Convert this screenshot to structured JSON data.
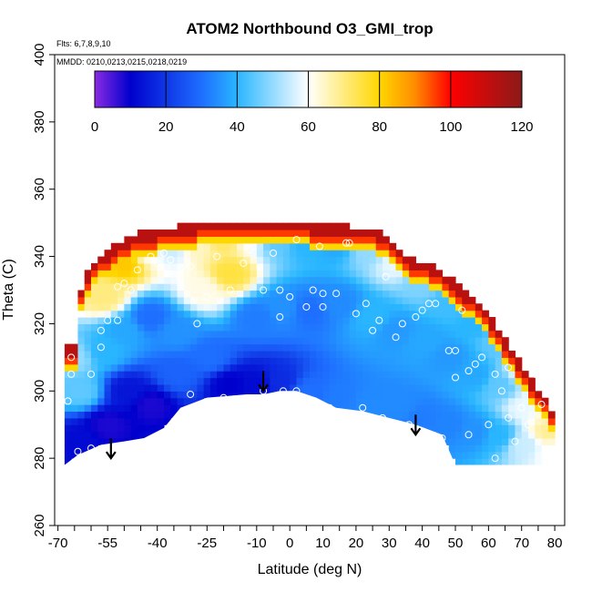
{
  "chart_data": {
    "type": "heatmap",
    "title": "ATOM2 Northbound O3_GMI_trop",
    "flights_label": "Flts: 6,7,8,9,10",
    "dates_label": "MMDD: 0210,0213,0215,0218,0219",
    "xlabel": "Latitude (deg N)",
    "ylabel": "Theta (C)",
    "xlim": [
      -71,
      83
    ],
    "ylim": [
      260,
      400
    ],
    "x_ticks": [
      -70,
      -55,
      -40,
      -25,
      -10,
      0,
      10,
      20,
      30,
      40,
      50,
      60,
      70,
      80
    ],
    "x_tick_labels": [
      "-70",
      "-55",
      "-40",
      "-25",
      "-10",
      "0",
      "10",
      "20",
      "30",
      "40",
      "50",
      "60",
      "70",
      "80"
    ],
    "y_ticks": [
      260,
      280,
      300,
      320,
      340,
      360,
      380,
      400
    ],
    "y_tick_labels": [
      "260",
      "280",
      "300",
      "320",
      "340",
      "360",
      "380",
      "400"
    ],
    "colorbar": {
      "min": 0,
      "max": 120,
      "ticks": [
        0,
        20,
        40,
        60,
        80,
        100,
        120
      ],
      "tick_labels": [
        "0",
        "20",
        "40",
        "60",
        "80",
        "100",
        "120"
      ],
      "colors": [
        "#8a2be2",
        "#0000cd",
        "#1e6eff",
        "#29b6ff",
        "#ffffff",
        "#ffd700",
        "#ff8c00",
        "#ff0000",
        "#8b1a1a"
      ],
      "stops": [
        0,
        10,
        30,
        40,
        60,
        80,
        90,
        100,
        120
      ]
    },
    "upper_boundary": [
      [
        -68,
        312
      ],
      [
        -64,
        313
      ],
      [
        -63,
        330
      ],
      [
        -60,
        337
      ],
      [
        -56,
        340
      ],
      [
        -52,
        343
      ],
      [
        -46,
        346
      ],
      [
        -40,
        347
      ],
      [
        -34,
        348
      ],
      [
        -20,
        350
      ],
      [
        -10,
        350
      ],
      [
        5,
        349
      ],
      [
        18,
        348
      ],
      [
        26,
        347
      ],
      [
        32,
        343
      ],
      [
        36,
        339
      ],
      [
        42,
        337
      ],
      [
        48,
        333
      ],
      [
        54,
        328
      ],
      [
        60,
        322
      ],
      [
        64,
        316
      ],
      [
        68,
        310
      ],
      [
        71,
        305
      ],
      [
        75,
        300
      ],
      [
        78,
        297
      ],
      [
        80,
        291
      ],
      [
        81,
        278
      ]
    ],
    "lower_boundary": [
      [
        -68,
        278
      ],
      [
        -64,
        281
      ],
      [
        -57,
        284
      ],
      [
        -50,
        285
      ],
      [
        -44,
        286
      ],
      [
        -38,
        289
      ],
      [
        -33,
        295
      ],
      [
        -25,
        298
      ],
      [
        -13,
        299
      ],
      [
        -8,
        299
      ],
      [
        -3,
        300
      ],
      [
        2,
        300
      ],
      [
        8,
        298
      ],
      [
        14,
        295
      ],
      [
        22,
        294
      ],
      [
        30,
        292
      ],
      [
        38,
        290
      ],
      [
        46,
        287
      ],
      [
        50,
        278
      ]
    ],
    "grid_points": [
      [
        -65,
        310,
        50
      ],
      [
        -63,
        300,
        45
      ],
      [
        -63,
        285,
        12
      ],
      [
        -56,
        328,
        70
      ],
      [
        -56,
        312,
        40
      ],
      [
        -55,
        290,
        8
      ],
      [
        -50,
        338,
        82
      ],
      [
        -50,
        318,
        38
      ],
      [
        -49,
        300,
        14
      ],
      [
        -43,
        342,
        60
      ],
      [
        -42,
        322,
        30
      ],
      [
        -42,
        296,
        8
      ],
      [
        -36,
        343,
        55
      ],
      [
        -34,
        318,
        35
      ],
      [
        -34,
        305,
        28
      ],
      [
        -28,
        344,
        65
      ],
      [
        -26,
        330,
        62
      ],
      [
        -24,
        310,
        30
      ],
      [
        -20,
        345,
        72
      ],
      [
        -18,
        335,
        75
      ],
      [
        -18,
        302,
        10
      ],
      [
        -12,
        346,
        60
      ],
      [
        -10,
        322,
        32
      ],
      [
        -10,
        302,
        12
      ],
      [
        -4,
        345,
        45
      ],
      [
        -2,
        325,
        35
      ],
      [
        -3,
        303,
        18
      ],
      [
        5,
        344,
        40
      ],
      [
        6,
        324,
        30
      ],
      [
        6,
        300,
        30
      ],
      [
        14,
        344,
        38
      ],
      [
        15,
        326,
        34
      ],
      [
        15,
        298,
        32
      ],
      [
        24,
        342,
        50
      ],
      [
        25,
        322,
        40
      ],
      [
        24,
        296,
        34
      ],
      [
        32,
        338,
        58
      ],
      [
        32,
        318,
        36
      ],
      [
        33,
        296,
        34
      ],
      [
        40,
        332,
        48
      ],
      [
        41,
        315,
        38
      ],
      [
        40,
        292,
        32
      ],
      [
        48,
        326,
        42
      ],
      [
        48,
        310,
        36
      ],
      [
        48,
        290,
        33
      ],
      [
        56,
        320,
        40
      ],
      [
        56,
        305,
        38
      ],
      [
        56,
        288,
        35
      ],
      [
        63,
        315,
        45
      ],
      [
        64,
        302,
        45
      ],
      [
        63,
        287,
        40
      ],
      [
        70,
        305,
        58
      ],
      [
        71,
        295,
        58
      ],
      [
        71,
        284,
        55
      ],
      [
        77,
        296,
        65
      ],
      [
        78,
        288,
        68
      ],
      [
        79,
        282,
        60
      ]
    ],
    "observation_points": [
      [
        -67,
        297
      ],
      [
        -66,
        310
      ],
      [
        -66,
        305
      ],
      [
        -64,
        282
      ],
      [
        -60,
        283
      ],
      [
        -60,
        305
      ],
      [
        -57,
        318
      ],
      [
        -57,
        313
      ],
      [
        -55,
        321
      ],
      [
        -52,
        321
      ],
      [
        -52,
        331
      ],
      [
        -50,
        332
      ],
      [
        -48,
        330
      ],
      [
        -46,
        336
      ],
      [
        -42,
        340
      ],
      [
        -40,
        338
      ],
      [
        -38,
        341
      ],
      [
        -36,
        339
      ],
      [
        -30,
        337
      ],
      [
        -30,
        299
      ],
      [
        -28,
        320
      ],
      [
        -25,
        328
      ],
      [
        -22,
        340
      ],
      [
        -20,
        298
      ],
      [
        -18,
        330
      ],
      [
        -14,
        338
      ],
      [
        -12,
        342
      ],
      [
        -8,
        330
      ],
      [
        -8,
        300
      ],
      [
        -5,
        341
      ],
      [
        -3,
        330
      ],
      [
        -3,
        322
      ],
      [
        -2,
        300
      ],
      [
        0,
        328
      ],
      [
        2,
        345
      ],
      [
        2,
        300
      ],
      [
        5,
        325
      ],
      [
        7,
        330
      ],
      [
        9,
        343
      ],
      [
        10,
        329
      ],
      [
        10,
        325
      ],
      [
        12,
        295
      ],
      [
        14,
        329
      ],
      [
        17,
        344
      ],
      [
        18,
        344
      ],
      [
        20,
        323
      ],
      [
        22,
        295
      ],
      [
        23,
        326
      ],
      [
        25,
        318
      ],
      [
        27,
        321
      ],
      [
        28,
        292
      ],
      [
        29,
        334
      ],
      [
        32,
        316
      ],
      [
        34,
        320
      ],
      [
        36,
        290
      ],
      [
        38,
        322
      ],
      [
        40,
        324
      ],
      [
        42,
        326
      ],
      [
        44,
        326
      ],
      [
        46,
        286
      ],
      [
        48,
        312
      ],
      [
        50,
        312
      ],
      [
        50,
        304
      ],
      [
        52,
        324
      ],
      [
        54,
        287
      ],
      [
        54,
        306
      ],
      [
        56,
        308
      ],
      [
        58,
        310
      ],
      [
        60,
        290
      ],
      [
        62,
        280
      ],
      [
        62,
        305
      ],
      [
        64,
        300
      ],
      [
        66,
        307
      ],
      [
        66,
        292
      ],
      [
        68,
        285
      ],
      [
        70,
        295
      ],
      [
        72,
        290
      ],
      [
        74,
        305
      ],
      [
        76,
        296
      ]
    ],
    "arrows": [
      [
        -54,
        280
      ],
      [
        -8,
        300
      ],
      [
        38,
        287
      ]
    ]
  }
}
